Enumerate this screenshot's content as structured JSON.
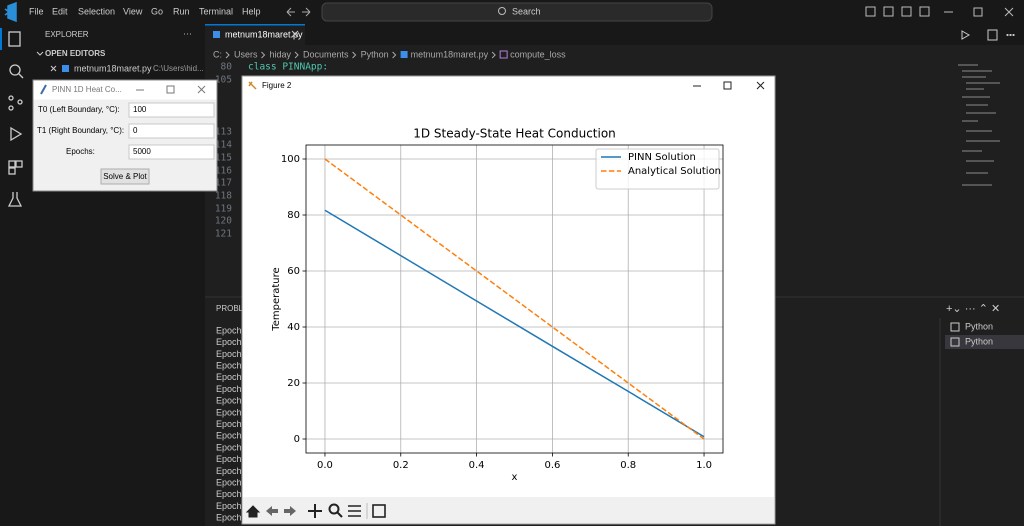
{
  "menu": [
    "File",
    "Edit",
    "Selection",
    "View",
    "Go",
    "Run",
    "Terminal",
    "Help"
  ],
  "search": "Search",
  "explorer": {
    "title": "EXPLORER",
    "section": "OPEN EDITORS",
    "file": "metnum18maret.py",
    "path": "C:\\Users\\hid..."
  },
  "editor": {
    "tab": "metnum18maret.py",
    "breadcrumb": [
      "C:",
      "Users",
      "hiday",
      "Documents",
      "Python",
      "metnum18maret.py",
      "compute_loss"
    ],
    "code": "class PINNApp:",
    "line_numbers": [
      "80",
      "105",
      "113",
      "114",
      "115",
      "116",
      "117",
      "118",
      "119",
      "120",
      "121"
    ]
  },
  "panel": {
    "tab": "PROBLE",
    "output": [
      "Epoch",
      "Epoch",
      "Epoch",
      "Epoch",
      "Epoch",
      "Epoch",
      "Epoch",
      "Epoch",
      "Epoch",
      "Epoch",
      "Epoch",
      "Epoch",
      "Epoch",
      "Epoch",
      "Epoch",
      "Epoch",
      "Epoch"
    ],
    "terminals": [
      "Python",
      "Python"
    ]
  },
  "tk_window": {
    "title": "PINN 1D Heat Co...",
    "fields": [
      {
        "label": "T0 (Left Boundary, °C):",
        "value": "100"
      },
      {
        "label": "T1 (Right Boundary, °C):",
        "value": "0"
      },
      {
        "label": "Epochs:",
        "value": "5000"
      }
    ],
    "button": "Solve & Plot"
  },
  "figure_window": {
    "title": "Figure 2",
    "chart_data": {
      "type": "line",
      "title": "1D Steady-State Heat Conduction",
      "xlabel": "x",
      "ylabel": "Temperature",
      "x": [
        0,
        0.2,
        0.4,
        0.6,
        0.8,
        1.0
      ],
      "series": [
        {
          "name": "PINN Solution",
          "color": "#1f77b4",
          "linestyle": "solid",
          "values": [
            81.7,
            65.5,
            49.3,
            33.1,
            17.0,
            0.8
          ]
        },
        {
          "name": "Analytical Solution",
          "color": "#ff7f0e",
          "linestyle": "dashed",
          "values": [
            100,
            80,
            60,
            40,
            20,
            0
          ]
        }
      ],
      "xlim": [
        -0.05,
        1.05
      ],
      "ylim": [
        -5,
        105
      ],
      "xticks": [
        {
          "value": 0,
          "label": "0.0"
        },
        0.2,
        0.4,
        0.6,
        0.8,
        {
          "value": 1,
          "label": "1.0"
        }
      ],
      "yticks": [
        0,
        20,
        40,
        60,
        80,
        100
      ],
      "grid": true,
      "legend": "upper right"
    }
  }
}
